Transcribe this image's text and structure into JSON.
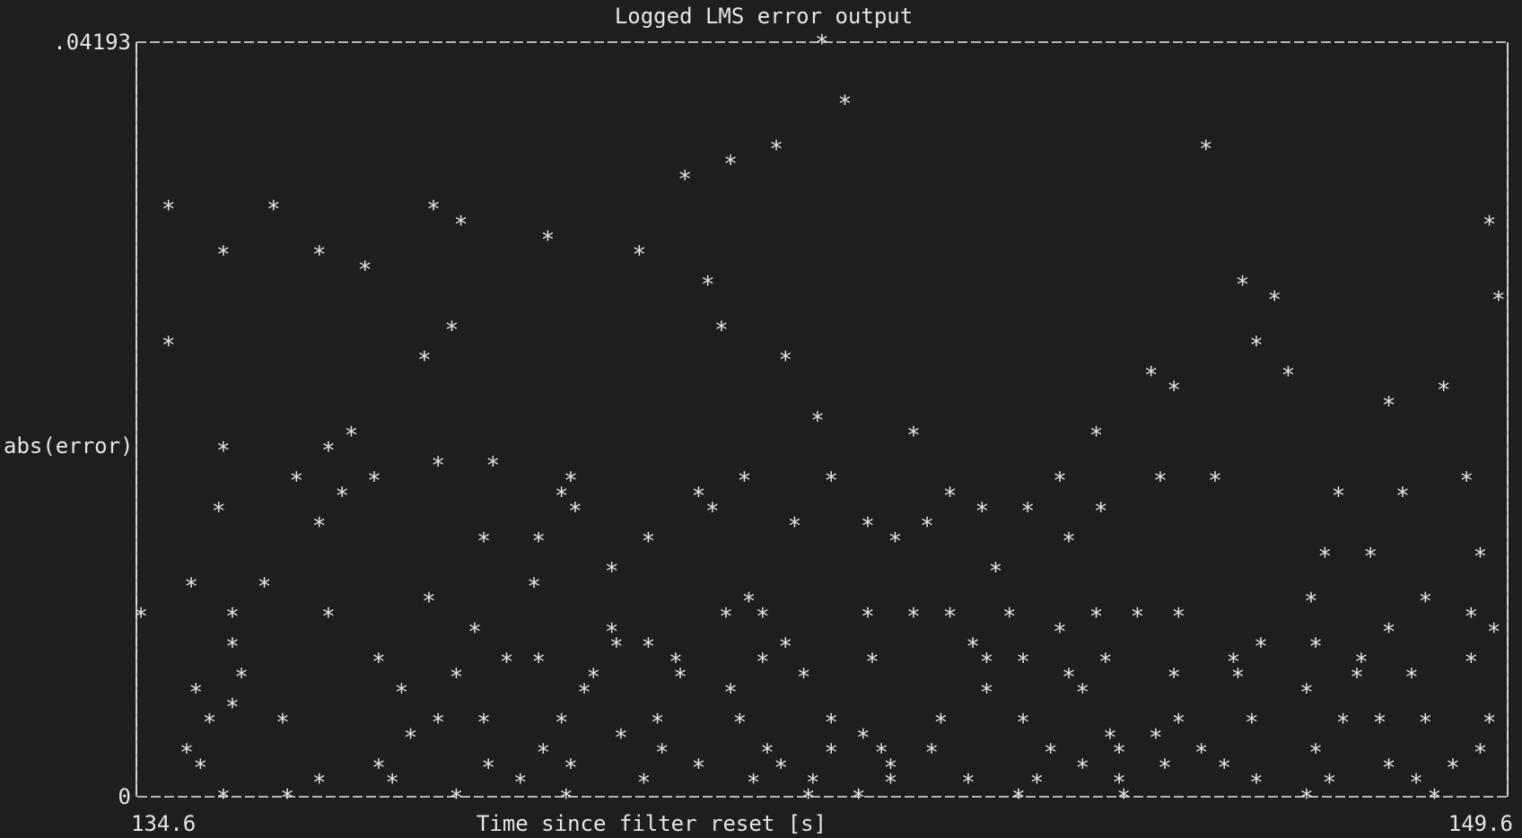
{
  "chart_data": {
    "type": "scatter",
    "title": "Logged LMS error output",
    "xlabel": "Time since filter reset [s]",
    "ylabel": "abs(error)",
    "xlim": [
      134.6,
      149.6
    ],
    "ylim": [
      0,
      0.04193
    ],
    "x_tick_labels": [
      "134.6",
      "149.6"
    ],
    "y_tick_labels": [
      "0",
      ".04193"
    ],
    "marker": "*",
    "grid": false,
    "series": [
      {
        "x": [
          142.1,
          142.35,
          141.6,
          141.1,
          140.6,
          146.3,
          149.4,
          134.95,
          136.1,
          137.85,
          138.15,
          139.1,
          140.1,
          136.6,
          135.55,
          137.1,
          140.85,
          146.7,
          147.05,
          149.5,
          138.05,
          141.0,
          134.95,
          146.85,
          137.75,
          141.7,
          145.7,
          147.2,
          148.9,
          145.95,
          148.3,
          142.05,
          145.1,
          136.95,
          143.1,
          135.55,
          136.7,
          137.9,
          138.5,
          136.35,
          137.2,
          139.35,
          141.25,
          142.2,
          144.7,
          145.8,
          146.4,
          149.15,
          136.85,
          139.25,
          140.75,
          143.5,
          147.75,
          148.45,
          135.5,
          139.4,
          140.9,
          143.85,
          144.35,
          145.15,
          136.6,
          141.8,
          142.6,
          143.25,
          140.2,
          139.0,
          138.4,
          142.9,
          144.8,
          147.6,
          148.1,
          149.3,
          139.8,
          144.0,
          138.95,
          135.2,
          136.0,
          137.8,
          141.3,
          147.45,
          148.7,
          134.65,
          135.65,
          136.7,
          141.05,
          141.45,
          142.6,
          143.1,
          143.5,
          144.15,
          145.1,
          145.55,
          146.0,
          149.2,
          138.3,
          139.8,
          144.7,
          148.3,
          149.45,
          140.2,
          135.65,
          139.85,
          141.7,
          143.75,
          146.9,
          147.5,
          145.2,
          137.25,
          138.65,
          139.0,
          140.5,
          141.45,
          142.65,
          143.9,
          144.3,
          146.6,
          148.0,
          149.2,
          135.75,
          138.1,
          139.6,
          140.55,
          141.9,
          144.8,
          145.95,
          146.65,
          147.95,
          148.55,
          135.25,
          137.5,
          139.5,
          141.1,
          143.9,
          144.95,
          147.4,
          135.65,
          135.4,
          136.2,
          137.9,
          138.4,
          139.25,
          140.3,
          141.2,
          142.2,
          143.4,
          144.3,
          146.0,
          146.8,
          147.8,
          148.2,
          148.7,
          149.4,
          137.6,
          139.9,
          142.55,
          145.25,
          145.75,
          135.15,
          139.05,
          140.35,
          141.5,
          142.2,
          142.75,
          143.3,
          144.6,
          145.35,
          146.25,
          147.5,
          149.3,
          135.3,
          137.25,
          138.45,
          139.35,
          140.75,
          141.65,
          142.85,
          144.95,
          145.85,
          146.5,
          148.3,
          149.0,
          136.6,
          137.4,
          138.8,
          140.15,
          141.35,
          142.0,
          142.85,
          143.7,
          144.45,
          145.35,
          146.85,
          147.65,
          148.6,
          135.55,
          136.25,
          138.1,
          139.3,
          141.95,
          142.5,
          144.25,
          145.4,
          147.4,
          148.8
        ]
      }
    ],
    "y": [
      0.04193,
      0.03857,
      0.03605,
      0.03522,
      0.03438,
      0.03605,
      0.03186,
      0.0327,
      0.0327,
      0.0327,
      0.03186,
      0.03102,
      0.03019,
      0.03019,
      0.03019,
      0.02935,
      0.02851,
      0.02851,
      0.02767,
      0.02767,
      0.026,
      0.026,
      0.02516,
      0.02516,
      0.02432,
      0.02432,
      0.02348,
      0.02348,
      0.02265,
      0.02265,
      0.02181,
      0.02097,
      0.02013,
      0.02013,
      0.02013,
      0.01929,
      0.01929,
      0.01846,
      0.01846,
      0.01762,
      0.01762,
      0.01762,
      0.01762,
      0.01762,
      0.01762,
      0.01762,
      0.01762,
      0.01762,
      0.01678,
      0.01678,
      0.01678,
      0.01678,
      0.01678,
      0.01678,
      0.01594,
      0.01594,
      0.01594,
      0.01594,
      0.01594,
      0.01594,
      0.0151,
      0.0151,
      0.0151,
      0.0151,
      0.01426,
      0.01426,
      0.01426,
      0.01426,
      0.01426,
      0.01342,
      0.01342,
      0.01342,
      0.01258,
      0.01258,
      0.01175,
      0.01175,
      0.01175,
      0.01091,
      0.01091,
      0.01091,
      0.01091,
      0.01007,
      0.01007,
      0.01007,
      0.01007,
      0.01007,
      0.01007,
      0.01007,
      0.01007,
      0.01007,
      0.01007,
      0.01007,
      0.01007,
      0.01007,
      0.00923,
      0.00923,
      0.00923,
      0.00923,
      0.00923,
      0.00839,
      0.00839,
      0.00839,
      0.00839,
      0.00839,
      0.00839,
      0.00839,
      0.00755,
      0.00755,
      0.00755,
      0.00755,
      0.00755,
      0.00755,
      0.00755,
      0.00755,
      0.00755,
      0.00755,
      0.00755,
      0.00755,
      0.00671,
      0.00671,
      0.00671,
      0.00671,
      0.00671,
      0.00671,
      0.00671,
      0.00671,
      0.00671,
      0.00671,
      0.00587,
      0.00587,
      0.00587,
      0.00587,
      0.00587,
      0.00587,
      0.00587,
      0.00503,
      0.00419,
      0.00419,
      0.00419,
      0.00419,
      0.00419,
      0.00419,
      0.00419,
      0.00419,
      0.00419,
      0.00419,
      0.00419,
      0.00419,
      0.00419,
      0.00419,
      0.00419,
      0.00419,
      0.00335,
      0.00335,
      0.00335,
      0.00335,
      0.00335,
      0.00252,
      0.00252,
      0.00252,
      0.00252,
      0.00252,
      0.00252,
      0.00252,
      0.00252,
      0.00252,
      0.00252,
      0.00252,
      0.00252,
      0.00168,
      0.00168,
      0.00168,
      0.00168,
      0.00168,
      0.00168,
      0.00168,
      0.00168,
      0.00168,
      0.00168,
      0.00168,
      0.00168,
      0.00084,
      0.00084,
      0.00084,
      0.00084,
      0.00084,
      0.00084,
      0.00084,
      0.00084,
      0.00084,
      0.00084,
      0.00084,
      0.00084,
      0.00084,
      0,
      0,
      0,
      0,
      0,
      0,
      0,
      0,
      0,
      0
    ]
  }
}
